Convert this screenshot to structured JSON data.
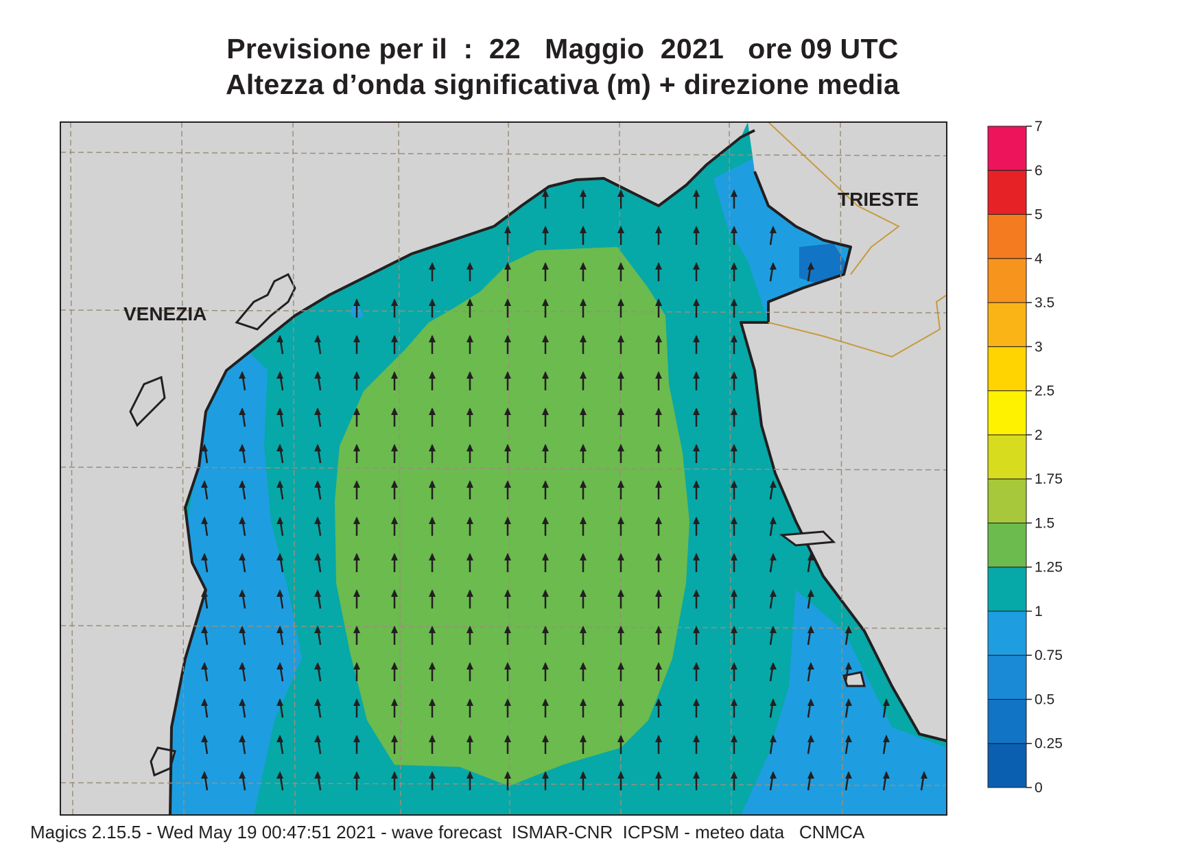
{
  "header": {
    "title_line1": "Previsione per il  :  22   Maggio  2021   ore 09 UTC",
    "title_line2": "Altezza d’onda significativa (m) + direzione media"
  },
  "map": {
    "place_labels": [
      "VENEZIA",
      "TRIESTE"
    ],
    "colors": {
      "land": "#d3d3d3",
      "coast": "#231f20",
      "border": "#c89a3c",
      "grid": "#9a8f7a",
      "arrow": "#231f20"
    },
    "wave_direction": "north"
  },
  "colorbar": {
    "labels": [
      "0",
      "0.25",
      "0.5",
      "0.75",
      "1",
      "1.25",
      "1.5",
      "1.75",
      "2",
      "2.5",
      "3",
      "3.5",
      "4",
      "5",
      "6",
      "7"
    ],
    "colors": [
      "#0a5fb0",
      "#1274c4",
      "#1b8ad6",
      "#1e9ee0",
      "#07a8a8",
      "#6bbb4e",
      "#a6c83a",
      "#d8dc1e",
      "#fff200",
      "#ffd400",
      "#fbb416",
      "#f7941d",
      "#f47b20",
      "#e62227",
      "#ed145b"
    ]
  },
  "footer": {
    "text": "Magics 2.15.5 - Wed May 19 00:47:51 2021 - wave forecast  ISMAR-CNR  ICPSM - meteo data   CNMCA"
  }
}
